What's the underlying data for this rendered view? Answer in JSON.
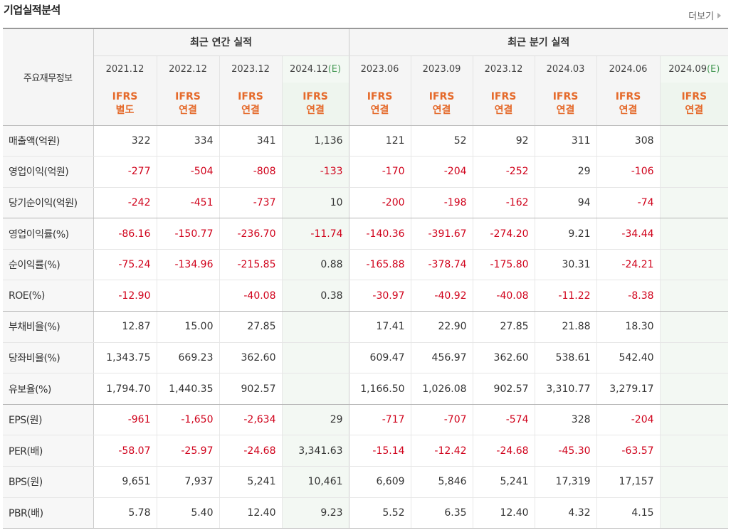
{
  "header": {
    "title": "기업실적분석",
    "more_label": "더보기"
  },
  "table": {
    "corner_label": "주요재무정보",
    "group_annual": "최근 연간 실적",
    "group_quarterly": "최근 분기 실적",
    "periods": [
      {
        "label": "2021.12",
        "est": ""
      },
      {
        "label": "2022.12",
        "est": ""
      },
      {
        "label": "2023.12",
        "est": ""
      },
      {
        "label": "2024.12",
        "est": "(E)"
      },
      {
        "label": "2023.06",
        "est": ""
      },
      {
        "label": "2023.09",
        "est": ""
      },
      {
        "label": "2023.12",
        "est": ""
      },
      {
        "label": "2024.03",
        "est": ""
      },
      {
        "label": "2024.06",
        "est": ""
      },
      {
        "label": "2024.09",
        "est": "(E)"
      }
    ],
    "accounting": [
      {
        "std": "IFRS",
        "type": "별도"
      },
      {
        "std": "IFRS",
        "type": "연결"
      },
      {
        "std": "IFRS",
        "type": "연결"
      },
      {
        "std": "IFRS",
        "type": "연결"
      },
      {
        "std": "IFRS",
        "type": "연결"
      },
      {
        "std": "IFRS",
        "type": "연결"
      },
      {
        "std": "IFRS",
        "type": "연결"
      },
      {
        "std": "IFRS",
        "type": "연결"
      },
      {
        "std": "IFRS",
        "type": "연결"
      },
      {
        "std": "IFRS",
        "type": "연결"
      }
    ],
    "rows": [
      {
        "label": "매출액(억원)",
        "values": [
          "322",
          "334",
          "341",
          "1,136",
          "121",
          "52",
          "92",
          "311",
          "308",
          ""
        ]
      },
      {
        "label": "영업이익(억원)",
        "values": [
          "-277",
          "-504",
          "-808",
          "-133",
          "-170",
          "-204",
          "-252",
          "29",
          "-106",
          ""
        ]
      },
      {
        "label": "당기순이익(억원)",
        "values": [
          "-242",
          "-451",
          "-737",
          "10",
          "-200",
          "-198",
          "-162",
          "94",
          "-74",
          ""
        ]
      },
      {
        "label": "영업이익률(%)",
        "values": [
          "-86.16",
          "-150.77",
          "-236.70",
          "-11.74",
          "-140.36",
          "-391.67",
          "-274.20",
          "9.21",
          "-34.44",
          ""
        ]
      },
      {
        "label": "순이익률(%)",
        "values": [
          "-75.24",
          "-134.96",
          "-215.85",
          "0.88",
          "-165.88",
          "-378.74",
          "-175.80",
          "30.31",
          "-24.21",
          ""
        ]
      },
      {
        "label": "ROE(%)",
        "values": [
          "-12.90",
          "",
          "-40.08",
          "0.38",
          "-30.97",
          "-40.92",
          "-40.08",
          "-11.22",
          "-8.38",
          ""
        ]
      },
      {
        "label": "부채비율(%)",
        "values": [
          "12.87",
          "15.00",
          "27.85",
          "",
          "17.41",
          "22.90",
          "27.85",
          "21.88",
          "18.30",
          ""
        ]
      },
      {
        "label": "당좌비율(%)",
        "values": [
          "1,343.75",
          "669.23",
          "362.60",
          "",
          "609.47",
          "456.97",
          "362.60",
          "538.61",
          "542.40",
          ""
        ]
      },
      {
        "label": "유보율(%)",
        "values": [
          "1,794.70",
          "1,440.35",
          "902.57",
          "",
          "1,166.50",
          "1,026.08",
          "902.57",
          "3,310.77",
          "3,279.17",
          ""
        ]
      },
      {
        "label": "EPS(원)",
        "values": [
          "-961",
          "-1,650",
          "-2,634",
          "29",
          "-717",
          "-707",
          "-574",
          "328",
          "-204",
          ""
        ]
      },
      {
        "label": "PER(배)",
        "values": [
          "-58.07",
          "-25.97",
          "-24.68",
          "3,341.63",
          "-15.14",
          "-12.42",
          "-24.68",
          "-45.30",
          "-63.57",
          ""
        ]
      },
      {
        "label": "BPS(원)",
        "values": [
          "9,651",
          "7,937",
          "5,241",
          "10,461",
          "6,609",
          "5,846",
          "5,241",
          "17,319",
          "17,157",
          ""
        ]
      },
      {
        "label": "PBR(배)",
        "values": [
          "5.78",
          "5.40",
          "12.40",
          "9.23",
          "5.52",
          "6.35",
          "12.40",
          "4.32",
          "4.15",
          ""
        ]
      }
    ],
    "colors": {
      "negative": "#d0021b",
      "accounting": "#e56a2b",
      "estimate": "#4b9c5a"
    }
  }
}
